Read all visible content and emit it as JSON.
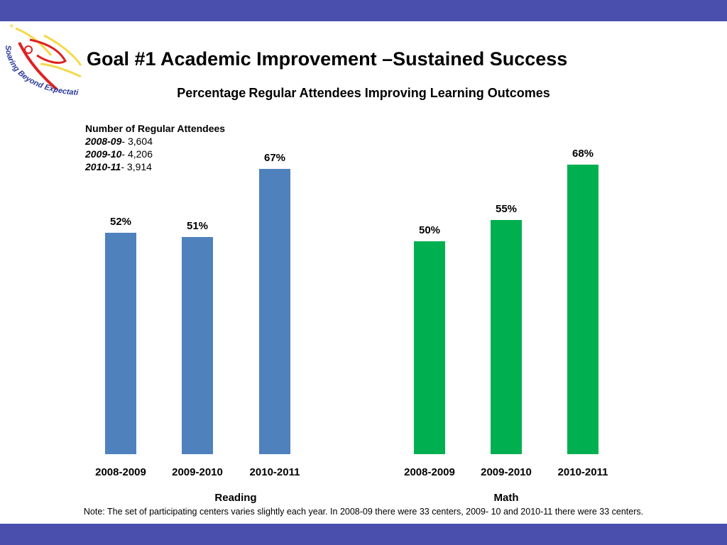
{
  "slide": {
    "title": "Goal #1 Academic Improvement –Sustained Success",
    "subtitle_part1": "Percentage",
    "subtitle_part2": "Regular Attendees Improving Learning Outcomes",
    "logo_text": "Soaring Beyond Expectations",
    "attendees": {
      "heading": "Number of Regular Attendees",
      "rows": [
        {
          "year": "2008-09",
          "value": "3,604"
        },
        {
          "year": "2009-10",
          "value": "4,206"
        },
        {
          "year": "2010-11",
          "value": "3,914"
        }
      ]
    },
    "note": "Note: The set of participating centers varies slightly each year. In 2008-09   there were 33 centers, 2009- 10 and 2010-11  there were 33 centers."
  },
  "chart_data": [
    {
      "type": "bar",
      "categories": [
        "2008-2009",
        "2009-2010",
        "2010-2011"
      ],
      "values": [
        52,
        51,
        67
      ],
      "data_labels": [
        "52%",
        "51%",
        "67%"
      ],
      "xlabel": "Reading",
      "ylabel": "",
      "ylim": [
        0,
        100
      ],
      "color": "#4f81bd",
      "grid": false
    },
    {
      "type": "bar",
      "categories": [
        "2008-2009",
        "2009-2010",
        "2010-2011"
      ],
      "values": [
        50,
        55,
        68
      ],
      "data_labels": [
        "50%",
        "55%",
        "68%"
      ],
      "xlabel": "Math",
      "ylabel": "",
      "ylim": [
        0,
        100
      ],
      "color": "#00b050",
      "grid": false
    }
  ],
  "colors": {
    "band": "#4a4fae",
    "reading": "#4f81bd",
    "math": "#00b050"
  }
}
